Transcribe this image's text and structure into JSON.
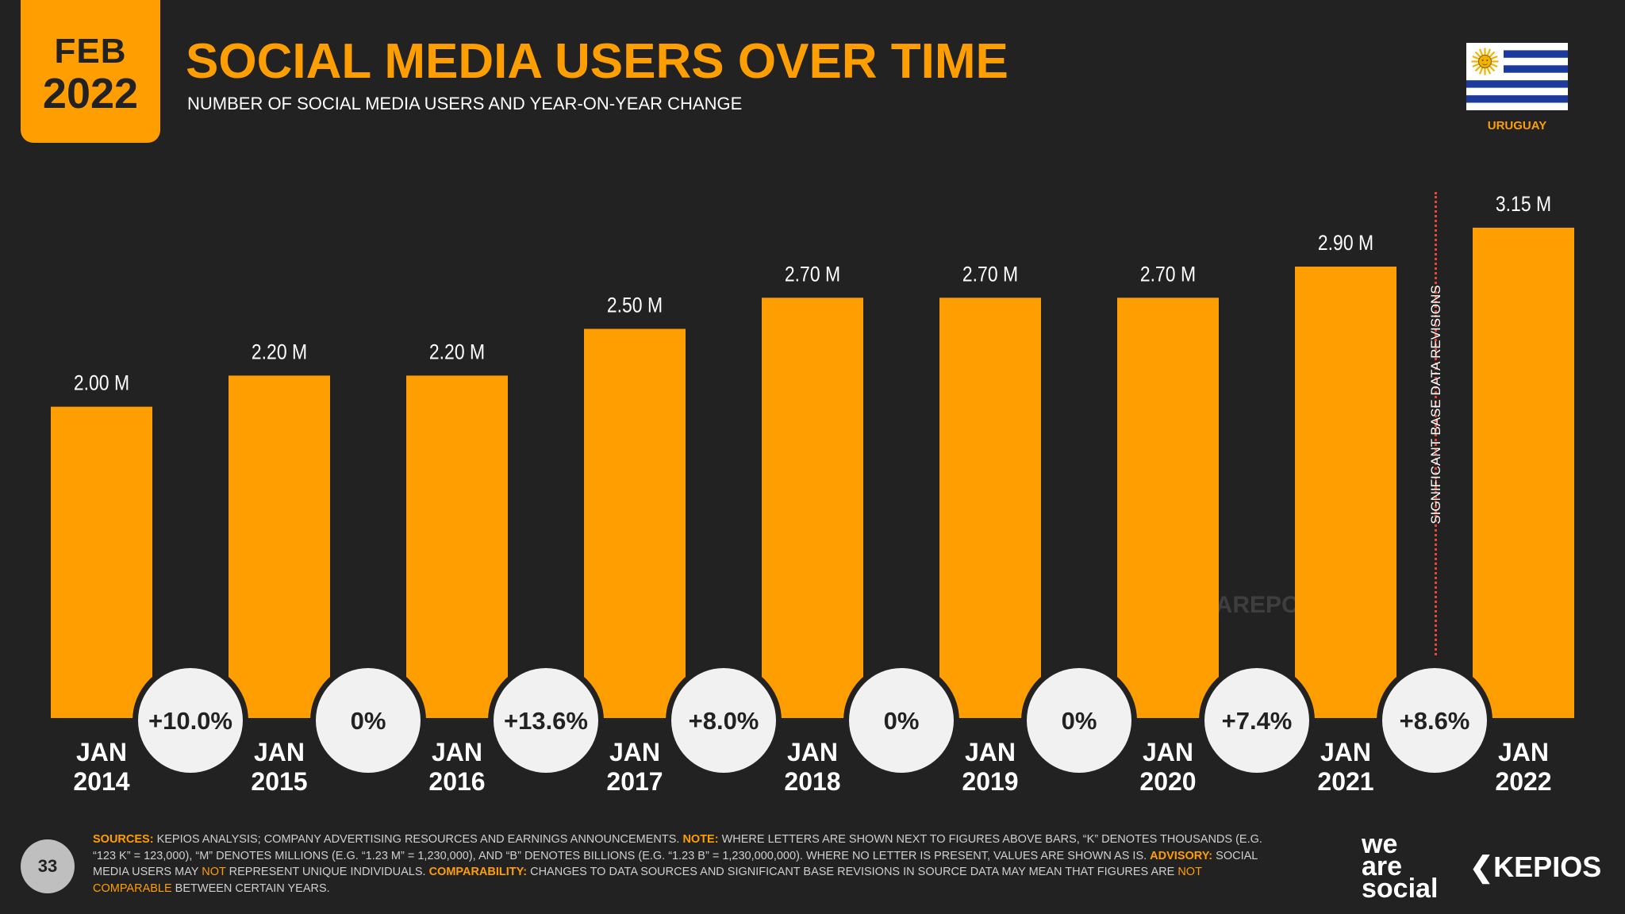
{
  "header": {
    "month": "FEB",
    "year": "2022",
    "title": "SOCIAL MEDIA USERS OVER TIME",
    "subtitle": "NUMBER OF SOCIAL MEDIA USERS AND YEAR-ON-YEAR CHANGE",
    "country": "URUGUAY"
  },
  "colors": {
    "accent": "#FF9E00",
    "background": "#222222",
    "badge": "#F1F1F1",
    "revision_line": "#E8463A"
  },
  "chart_data": {
    "type": "bar",
    "title": "SOCIAL MEDIA USERS OVER TIME",
    "unit": "millions",
    "categories": [
      {
        "month": "JAN",
        "year": "2014"
      },
      {
        "month": "JAN",
        "year": "2015"
      },
      {
        "month": "JAN",
        "year": "2016"
      },
      {
        "month": "JAN",
        "year": "2017"
      },
      {
        "month": "JAN",
        "year": "2018"
      },
      {
        "month": "JAN",
        "year": "2019"
      },
      {
        "month": "JAN",
        "year": "2020"
      },
      {
        "month": "JAN",
        "year": "2021"
      },
      {
        "month": "JAN",
        "year": "2022"
      }
    ],
    "values": [
      2.0,
      2.2,
      2.2,
      2.5,
      2.7,
      2.7,
      2.7,
      2.9,
      3.15
    ],
    "value_labels": [
      "2.00 M",
      "2.20 M",
      "2.20 M",
      "2.50 M",
      "2.70 M",
      "2.70 M",
      "2.70 M",
      "2.90 M",
      "3.15 M"
    ],
    "yoy_change": [
      "+10.0%",
      "0%",
      "+13.6%",
      "+8.0%",
      "0%",
      "0%",
      "+7.4%",
      "+8.6%"
    ],
    "annotation": "SIGNIFICANT BASE DATA REVISIONS",
    "ylim": [
      0,
      3.15
    ]
  },
  "watermark": "DATAREPORTAL",
  "page_number": "33",
  "footnote": {
    "sources_label": "SOURCES:",
    "sources_text": " KEPIOS ANALYSIS; COMPANY ADVERTISING RESOURCES AND EARNINGS ANNOUNCEMENTS. ",
    "note_label": "NOTE:",
    "note_text": " WHERE LETTERS ARE SHOWN NEXT TO FIGURES ABOVE BARS, “K” DENOTES THOUSANDS (E.G. “123 K” = 123,000), “M” DENOTES MILLIONS (E.G. “1.23 M” = 1,230,000), AND “B” DENOTES BILLIONS (E.G. “1.23 B” = 1,230,000,000). WHERE NO LETTER IS PRESENT, VALUES ARE SHOWN AS IS. ",
    "advisory_label": "ADVISORY:",
    "advisory_text_1": " SOCIAL MEDIA USERS MAY ",
    "advisory_not": "NOT",
    "advisory_text_2": " REPRESENT UNIQUE INDIVIDUALS. ",
    "comparability_label": "COMPARABILITY:",
    "comparability_text": " CHANGES TO DATA SOURCES AND SIGNIFICANT BASE REVISIONS IN SOURCE DATA MAY MEAN THAT FIGURES ARE ",
    "comparability_not": "NOT",
    "comparability_end_1": " COMPARABLE",
    "comparability_end_2": " BETWEEN CERTAIN YEARS."
  },
  "logos": {
    "was_line1": "we",
    "was_line2": "are",
    "was_line3": "social",
    "kepios": "KEPIOS"
  }
}
